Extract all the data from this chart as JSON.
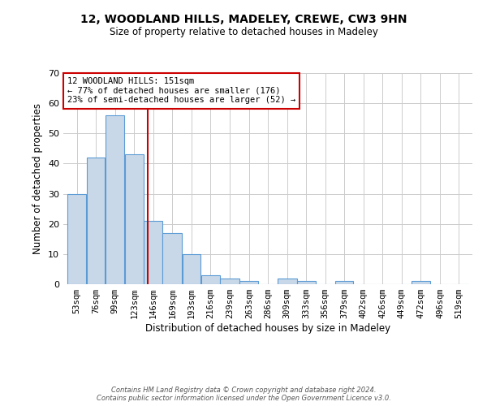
{
  "title": "12, WOODLAND HILLS, MADELEY, CREWE, CW3 9HN",
  "subtitle": "Size of property relative to detached houses in Madeley",
  "xlabel": "Distribution of detached houses by size in Madeley",
  "ylabel": "Number of detached properties",
  "bar_labels": [
    "53sqm",
    "76sqm",
    "99sqm",
    "123sqm",
    "146sqm",
    "169sqm",
    "193sqm",
    "216sqm",
    "239sqm",
    "263sqm",
    "286sqm",
    "309sqm",
    "333sqm",
    "356sqm",
    "379sqm",
    "402sqm",
    "426sqm",
    "449sqm",
    "472sqm",
    "496sqm",
    "519sqm"
  ],
  "bar_values": [
    30,
    42,
    56,
    43,
    21,
    17,
    10,
    3,
    2,
    1,
    0,
    2,
    1,
    0,
    1,
    0,
    0,
    0,
    1,
    0,
    0
  ],
  "bin_edges": [
    53,
    76,
    99,
    123,
    146,
    169,
    193,
    216,
    239,
    263,
    286,
    309,
    333,
    356,
    379,
    402,
    426,
    449,
    472,
    496,
    519,
    542
  ],
  "bar_color": "#c8d8e8",
  "bar_edgecolor": "#5b9bd5",
  "vline_x": 151,
  "vline_color": "#cc0000",
  "ylim": [
    0,
    70
  ],
  "yticks": [
    0,
    10,
    20,
    30,
    40,
    50,
    60,
    70
  ],
  "annotation_text": "12 WOODLAND HILLS: 151sqm\n← 77% of detached houses are smaller (176)\n23% of semi-detached houses are larger (52) →",
  "annotation_box_color": "#ffffff",
  "annotation_box_edgecolor": "#cc0000",
  "footer_line1": "Contains HM Land Registry data © Crown copyright and database right 2024.",
  "footer_line2": "Contains public sector information licensed under the Open Government Licence v3.0.",
  "background_color": "#ffffff",
  "grid_color": "#cccccc"
}
